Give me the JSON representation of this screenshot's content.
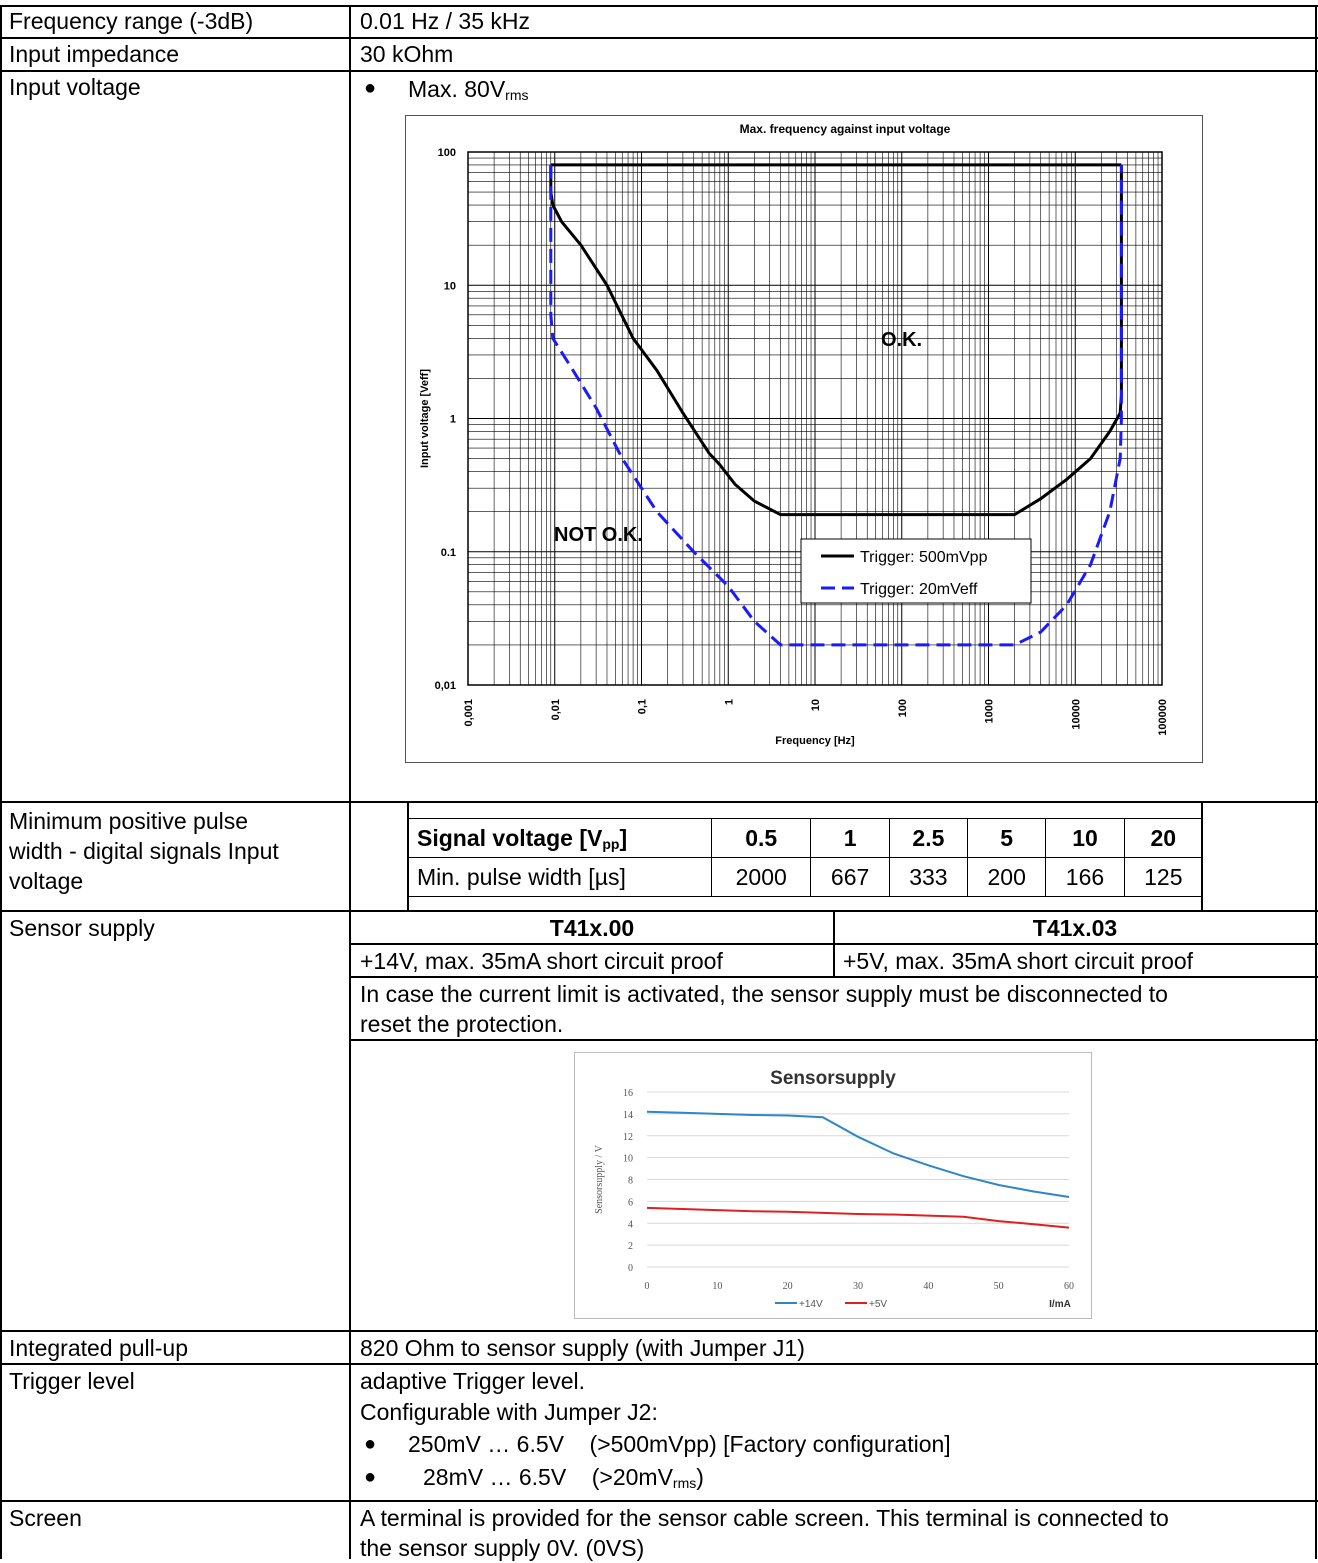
{
  "rows": {
    "freq": {
      "label": "Frequency range (-3dB)",
      "value": "0.01 Hz / 35 kHz"
    },
    "impedance": {
      "label": "Input impedance",
      "value": "30 kOhm"
    },
    "input_voltage": {
      "label": "Input voltage",
      "bullet_text": "Max. 80V",
      "bullet_sub": "rms"
    },
    "pulse": {
      "label_lines": [
        "Minimum positive pulse",
        "width - digital signals Input",
        "voltage"
      ],
      "header_label": "Signal voltage [V",
      "header_sub": "pp",
      "header_close": "]",
      "row_label": "Min. pulse width [µs]",
      "voltages": [
        "0.5",
        "1",
        "2.5",
        "5",
        "10",
        "20"
      ],
      "widths": [
        "2000",
        "667",
        "333",
        "200",
        "166",
        "125"
      ]
    },
    "sensor": {
      "label": "Sensor supply",
      "col1_title": "T41x.00",
      "col2_title": "T41x.03",
      "col1_value": "+14V, max. 35mA short circuit proof",
      "col2_value": "+5V, max. 35mA short circuit proof",
      "note_lines": [
        "In case the current limit is activated, the sensor supply must be disconnected to",
        "reset the protection."
      ]
    },
    "pullup": {
      "label": "Integrated pull-up",
      "value": "820 Ohm to sensor supply (with Jumper J1)"
    },
    "trigger": {
      "label": "Trigger level",
      "line1": "adaptive Trigger level.",
      "line2": "Configurable with Jumper J2:",
      "b1": "250mV … 6.5V    (>500mVpp) [Factory configuration]",
      "b2_main": "28mV … 6.5V    (>20mV",
      "b2_sub": "rms",
      "b2_close": ")"
    },
    "screen": {
      "label": "Screen",
      "lines": [
        "A terminal is provided for the sensor cable screen. This terminal is connected to",
        "the sensor supply 0V. (0VS)"
      ]
    }
  },
  "chart_data": [
    {
      "type": "line",
      "title": "Max. frequency against  input voltage",
      "xlabel": "Frequency [Hz]",
      "ylabel": "Input voltage [Veff]",
      "xscale": "log",
      "yscale": "log",
      "xlim": [
        0.001,
        100000
      ],
      "ylim": [
        0.01,
        100
      ],
      "x_ticks": [
        "0,001",
        "0,01",
        "0,1",
        "1",
        "10",
        "100",
        "1000",
        "10000",
        "100000"
      ],
      "y_ticks": [
        "100",
        "10",
        "1",
        "0.1",
        "0,01"
      ],
      "grid": true,
      "legend_position": "bottom-right",
      "annotations": [
        "O.K.",
        "NOT O.K."
      ],
      "series": [
        {
          "name": "Trigger: 500mVpp",
          "color": "#000000",
          "style": "solid",
          "x": [
            0.009,
            0.009,
            0.0095,
            0.012,
            0.02,
            0.04,
            0.08,
            0.15,
            0.3,
            0.6,
            0.8,
            1.2,
            2,
            4,
            10,
            100,
            1000,
            2000,
            4000,
            8000,
            15000,
            25000,
            33000,
            34000,
            34000
          ],
          "y": [
            80,
            50,
            40,
            30,
            20,
            10,
            4,
            2.3,
            1.1,
            0.55,
            0.45,
            0.32,
            0.24,
            0.19,
            0.19,
            0.19,
            0.19,
            0.19,
            0.25,
            0.35,
            0.5,
            0.8,
            1.1,
            1.5,
            80
          ]
        },
        {
          "name": "Trigger: 20mVeff",
          "color": "#1a1aff",
          "style": "dashed",
          "x": [
            0.009,
            0.009,
            0.0095,
            0.015,
            0.03,
            0.06,
            0.15,
            0.4,
            1,
            2,
            4,
            10,
            100,
            1000,
            2000,
            4000,
            8000,
            15000,
            25000,
            33000,
            34000,
            34000
          ],
          "y": [
            80,
            6,
            4,
            2.5,
            1.2,
            0.5,
            0.2,
            0.1,
            0.055,
            0.03,
            0.02,
            0.02,
            0.02,
            0.02,
            0.02,
            0.025,
            0.04,
            0.08,
            0.2,
            0.5,
            1,
            80
          ]
        }
      ]
    },
    {
      "type": "line",
      "title": "Sensorsupply",
      "xlabel": "I/mA",
      "ylabel": "Sensorsupply / V",
      "xlim": [
        0,
        60
      ],
      "ylim": [
        0,
        16
      ],
      "x_ticks": [
        "0",
        "10",
        "20",
        "30",
        "40",
        "50",
        "60"
      ],
      "y_ticks": [
        "0",
        "2",
        "4",
        "6",
        "8",
        "10",
        "12",
        "14",
        "16"
      ],
      "grid": true,
      "legend_position": "bottom",
      "series": [
        {
          "name": "+14V",
          "color": "#2e86c8",
          "x": [
            0,
            5,
            10,
            15,
            20,
            25,
            30,
            35,
            40,
            45,
            50,
            55,
            60
          ],
          "y": [
            14.2,
            14.1,
            14.0,
            13.9,
            13.85,
            13.7,
            11.9,
            10.4,
            9.3,
            8.3,
            7.5,
            6.9,
            6.4
          ]
        },
        {
          "name": "+5V",
          "color": "#e02020",
          "x": [
            0,
            5,
            10,
            15,
            20,
            25,
            30,
            35,
            40,
            45,
            50,
            55,
            60
          ],
          "y": [
            5.4,
            5.3,
            5.2,
            5.1,
            5.05,
            4.95,
            4.85,
            4.8,
            4.7,
            4.6,
            4.2,
            3.9,
            3.6
          ]
        }
      ]
    }
  ]
}
